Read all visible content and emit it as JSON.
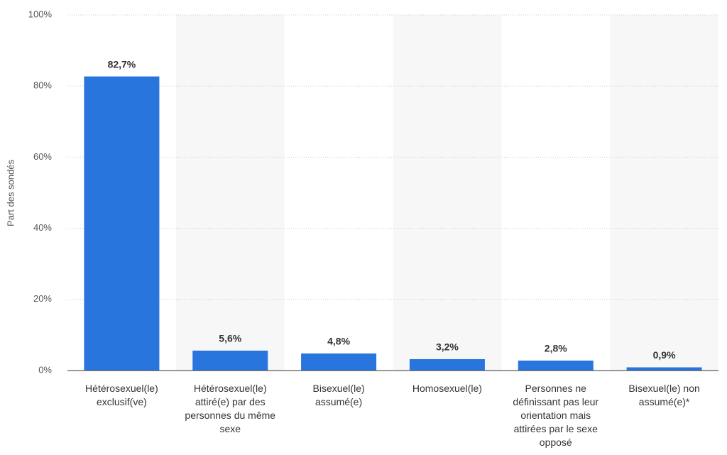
{
  "chart_data": {
    "type": "bar",
    "y_label": "Part des sondés",
    "categories": [
      "Hétérosexuel(le) exclusif(ve)",
      "Hétérosexuel(le) attiré(e) par des personnes du même sexe",
      "Bisexuel(le) assumé(e)",
      "Homosexuel(le)",
      "Personnes ne définissant pas leur orientation mais attirées par le sexe opposé",
      "Bisexuel(le) non assumé(e)*"
    ],
    "values": [
      82.7,
      5.6,
      4.8,
      3.2,
      2.8,
      0.9
    ],
    "value_labels": [
      "82,7%",
      "5,6%",
      "4,8%",
      "3,2%",
      "2,8%",
      "0,9%"
    ],
    "color": "#2876dd",
    "ylim": [
      0,
      100
    ],
    "yticks": [
      {
        "value": 0,
        "label": "0%"
      },
      {
        "value": 20,
        "label": "20%"
      },
      {
        "value": 40,
        "label": "40%"
      },
      {
        "value": 60,
        "label": "60%"
      },
      {
        "value": 80,
        "label": "80%"
      },
      {
        "value": 100,
        "label": "100%"
      }
    ],
    "grid": true
  }
}
